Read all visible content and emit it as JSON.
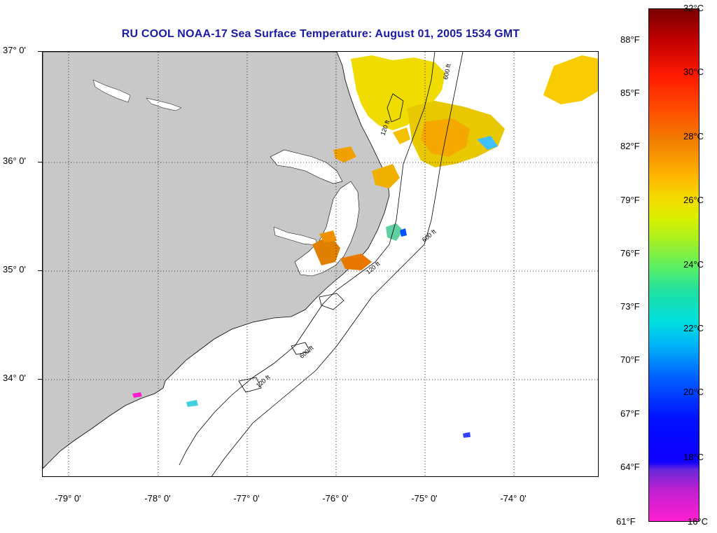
{
  "title": "RU COOL  NOAA-17  Sea Surface Temperature:  August 01, 2005 1534 GMT",
  "map": {
    "lat_labels": [
      "37° 0'",
      "36° 0'",
      "35° 0'",
      "34° 0'"
    ],
    "lon_labels": [
      "-79° 0'",
      "-78° 0'",
      "-77° 0'",
      "-76° 0'",
      "-75° 0'",
      "-74° 0'"
    ],
    "contour_labels": [
      "120 ft",
      "600 ft"
    ],
    "land_color": "#c8c8c8",
    "grid": true
  },
  "colorbar": {
    "fahrenheit": [
      "88°F",
      "85°F",
      "82°F",
      "79°F",
      "76°F",
      "73°F",
      "70°F",
      "67°F",
      "64°F",
      "61°F"
    ],
    "celsius": [
      "32°C",
      "30°C",
      "28°C",
      "26°C",
      "24°C",
      "22°C",
      "20°C",
      "18°C",
      "16°C"
    ]
  }
}
